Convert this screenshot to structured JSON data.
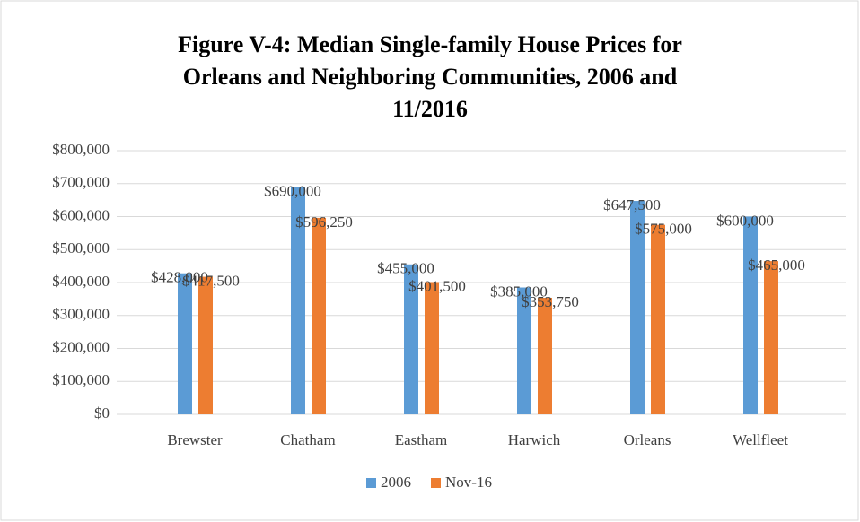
{
  "chart_data": {
    "type": "bar",
    "title": [
      "Figure V-4: Median Single-family House Prices for",
      "Orleans and Neighboring Communities, 2006 and",
      "11/2016"
    ],
    "categories": [
      "Brewster",
      "Chatham",
      "Eastham",
      "Harwich",
      "Orleans",
      "Wellfleet"
    ],
    "series": [
      {
        "name": "2006",
        "color": "#5b9bd5",
        "values": [
          428000,
          690000,
          455000,
          385000,
          647500,
          600000
        ],
        "value_labels": [
          "$428,000",
          "$690,000",
          "$455,000",
          "$385,000",
          "$647,500",
          "$600,000"
        ]
      },
      {
        "name": "Nov-16",
        "color": "#ed7d31",
        "values": [
          417500,
          596250,
          401500,
          353750,
          575000,
          465000
        ],
        "value_labels": [
          "$417,500",
          "$596,250",
          "$401,500",
          "$353,750",
          "$575,000",
          "$465,000"
        ]
      }
    ],
    "ylim": [
      0,
      800000
    ],
    "yticks": [
      {
        "value": 0,
        "label": "$0"
      },
      {
        "value": 100000,
        "label": "$100,000"
      },
      {
        "value": 200000,
        "label": "$200,000"
      },
      {
        "value": 300000,
        "label": "$300,000"
      },
      {
        "value": 400000,
        "label": "$400,000"
      },
      {
        "value": 500000,
        "label": "$500,000"
      },
      {
        "value": 600000,
        "label": "$600,000"
      },
      {
        "value": 700000,
        "label": "$700,000"
      },
      {
        "value": 800000,
        "label": "$800,000"
      }
    ],
    "grid": true,
    "legend": "bottom"
  }
}
